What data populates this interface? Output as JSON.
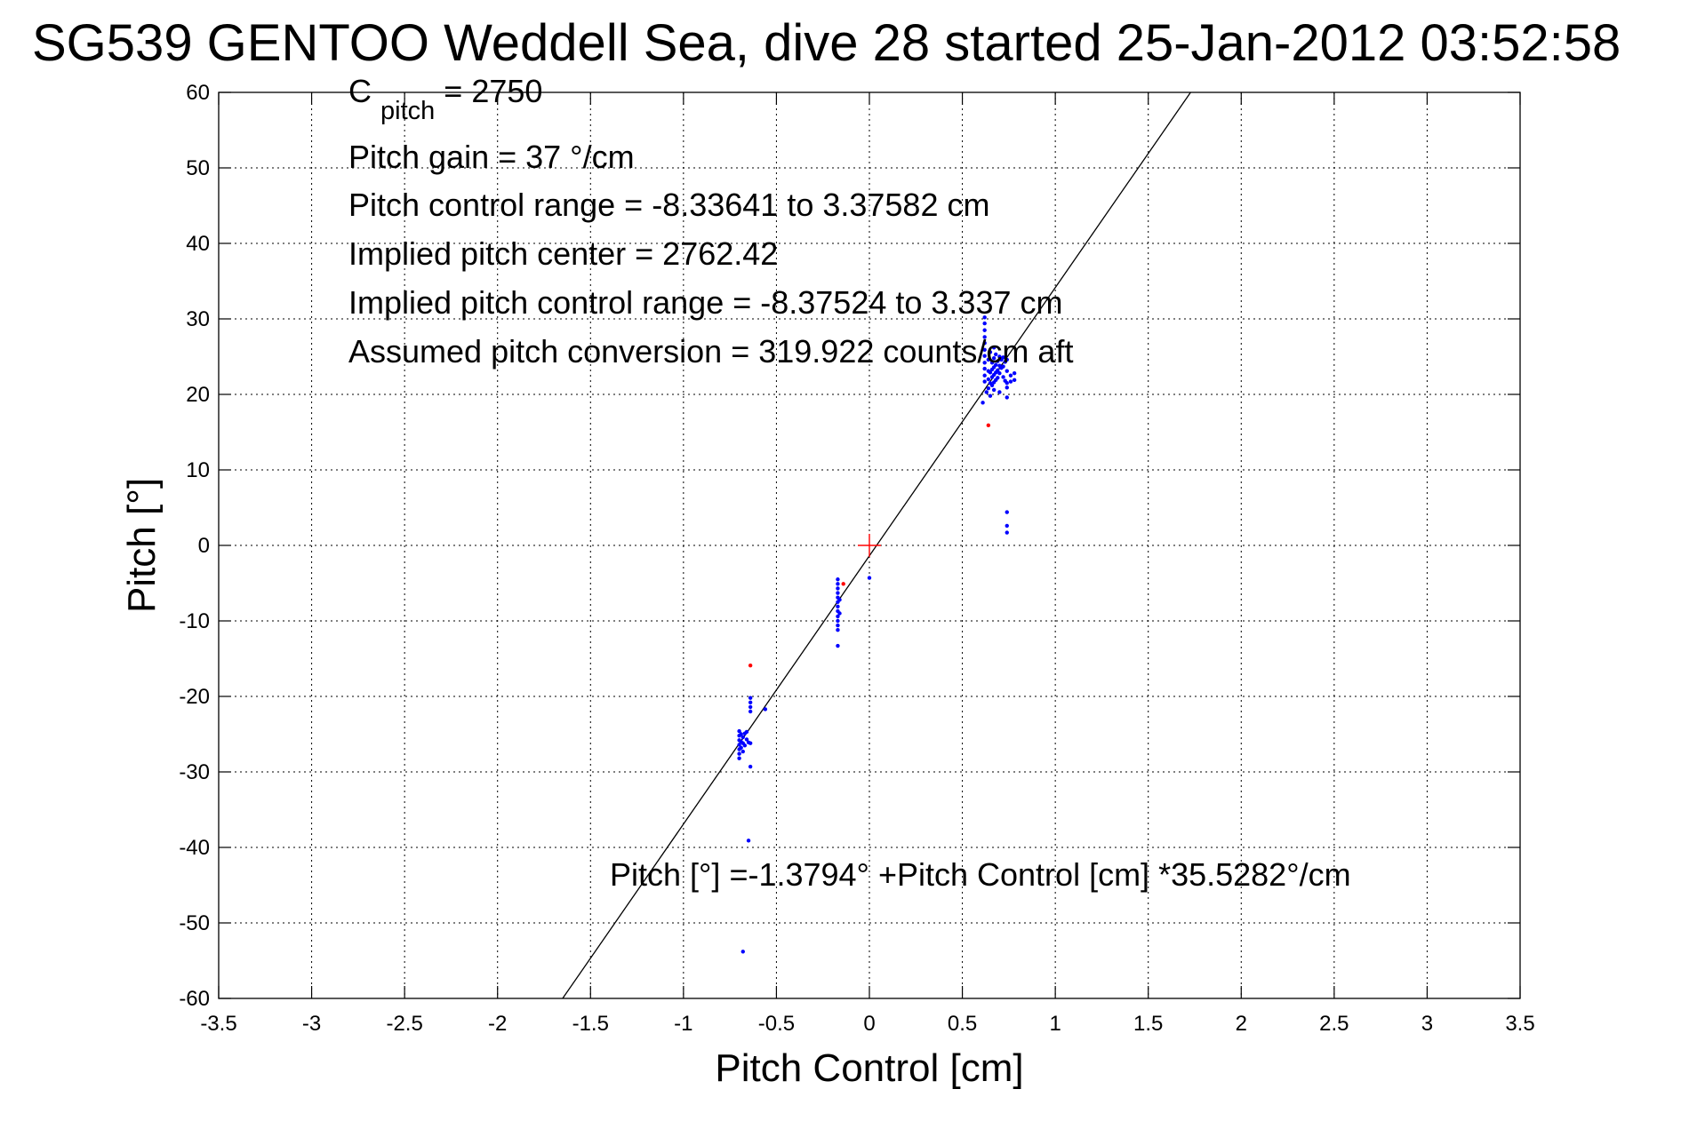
{
  "chart_data": {
    "type": "scatter",
    "title": "SG539 GENTOO Weddell Sea, dive 28 started 25-Jan-2012 03:52:58",
    "xlabel": "Pitch Control [cm]",
    "ylabel": "Pitch [°]",
    "xlim": [
      -3.5,
      3.5
    ],
    "ylim": [
      -60,
      60
    ],
    "xticks": [
      -3.5,
      -3,
      -2.5,
      -2,
      -1.5,
      -1,
      -0.5,
      0,
      0.5,
      1,
      1.5,
      2,
      2.5,
      3,
      3.5
    ],
    "xtick_labels": [
      "-3.5",
      "-3",
      "-2.5",
      "-2",
      "-1.5",
      "-1",
      "-0.5",
      "0",
      "0.5",
      "1",
      "1.5",
      "2",
      "2.5",
      "3",
      "3.5"
    ],
    "yticks": [
      -60,
      -50,
      -40,
      -30,
      -20,
      -10,
      0,
      10,
      20,
      30,
      40,
      50,
      60
    ],
    "ytick_labels": [
      "-60",
      "-50",
      "-40",
      "-30",
      "-20",
      "-10",
      "0",
      "10",
      "20",
      "30",
      "40",
      "50",
      "60"
    ],
    "grid": true,
    "annotations": {
      "c_pitch_main": "C",
      "c_pitch_sub": "pitch",
      "c_pitch_value": " = 2750",
      "lines": [
        "Pitch gain = 37 °/cm",
        "Pitch control range = -8.33641 to 3.37582 cm",
        "Implied pitch center = 2762.42",
        "Implied pitch control range = -8.37524 to 3.337 cm",
        "Assumed pitch conversion = 319.922 counts/cm aft"
      ],
      "fit_equation": "Pitch [°] =-1.3794° +Pitch Control [cm] *35.5282°/cm"
    },
    "fit_line": {
      "intercept": -1.3794,
      "slope": 35.5282,
      "color": "#000000"
    },
    "center_marker": {
      "x": 0,
      "y": 0,
      "color": "#ff0000"
    },
    "series": [
      {
        "color": "#0000ff",
        "points": [
          [
            -0.7,
            -24.6
          ],
          [
            -0.7,
            -25.2
          ],
          [
            -0.7,
            -25.8
          ],
          [
            -0.7,
            -26.4
          ],
          [
            -0.7,
            -27.0
          ],
          [
            -0.7,
            -27.6
          ],
          [
            -0.7,
            -28.2
          ],
          [
            -0.69,
            -25.0
          ],
          [
            -0.69,
            -26.0
          ],
          [
            -0.69,
            -26.8
          ],
          [
            -0.68,
            -25.4
          ],
          [
            -0.68,
            -26.2
          ],
          [
            -0.68,
            -27.3
          ],
          [
            -0.67,
            -24.9
          ],
          [
            -0.67,
            -26.5
          ],
          [
            -0.66,
            -25.7
          ],
          [
            -0.66,
            -24.7
          ],
          [
            -0.65,
            -26.1
          ],
          [
            -0.64,
            -20.2
          ],
          [
            -0.64,
            -20.8
          ],
          [
            -0.64,
            -21.4
          ],
          [
            -0.64,
            -22.0
          ],
          [
            -0.64,
            -29.3
          ],
          [
            -0.64,
            -26.2
          ],
          [
            -0.56,
            -21.7
          ],
          [
            -0.65,
            -39.1
          ],
          [
            -0.68,
            -53.8
          ],
          [
            -0.17,
            -4.5
          ],
          [
            -0.17,
            -5.1
          ],
          [
            -0.17,
            -5.7
          ],
          [
            -0.17,
            -6.3
          ],
          [
            -0.17,
            -6.9
          ],
          [
            -0.17,
            -7.5
          ],
          [
            -0.17,
            -8.1
          ],
          [
            -0.17,
            -8.7
          ],
          [
            -0.17,
            -9.4
          ],
          [
            -0.17,
            -10.0
          ],
          [
            -0.17,
            -10.6
          ],
          [
            -0.17,
            -11.2
          ],
          [
            -0.17,
            -13.3
          ],
          [
            -0.16,
            -7.2
          ],
          [
            -0.16,
            -9.0
          ],
          [
            0.0,
            -4.3
          ],
          [
            0.62,
            30.2
          ],
          [
            0.62,
            29.4
          ],
          [
            0.62,
            28.5
          ],
          [
            0.62,
            27.6
          ],
          [
            0.62,
            26.8
          ],
          [
            0.62,
            25.9
          ],
          [
            0.62,
            25.1
          ],
          [
            0.62,
            24.2
          ],
          [
            0.62,
            23.4
          ],
          [
            0.62,
            22.5
          ],
          [
            0.62,
            21.7
          ],
          [
            0.61,
            18.9
          ],
          [
            0.63,
            20.3
          ],
          [
            0.64,
            24.6
          ],
          [
            0.64,
            23.1
          ],
          [
            0.64,
            22.0
          ],
          [
            0.64,
            20.8
          ],
          [
            0.65,
            25.6
          ],
          [
            0.65,
            22.9
          ],
          [
            0.65,
            21.5
          ],
          [
            0.65,
            19.8
          ],
          [
            0.66,
            24.2
          ],
          [
            0.66,
            23.3
          ],
          [
            0.66,
            22.3
          ],
          [
            0.66,
            21.2
          ],
          [
            0.67,
            26.2
          ],
          [
            0.67,
            24.8
          ],
          [
            0.67,
            23.6
          ],
          [
            0.67,
            22.6
          ],
          [
            0.67,
            21.6
          ],
          [
            0.67,
            20.6
          ],
          [
            0.68,
            25.3
          ],
          [
            0.68,
            23.9
          ],
          [
            0.68,
            22.9
          ],
          [
            0.68,
            21.9
          ],
          [
            0.69,
            24.4
          ],
          [
            0.69,
            23.2
          ],
          [
            0.69,
            22.2
          ],
          [
            0.7,
            25.0
          ],
          [
            0.7,
            23.8
          ],
          [
            0.7,
            22.8
          ],
          [
            0.7,
            20.3
          ],
          [
            0.71,
            24.6
          ],
          [
            0.71,
            23.5
          ],
          [
            0.72,
            24.9
          ],
          [
            0.72,
            23.7
          ],
          [
            0.72,
            22.3
          ],
          [
            0.73,
            24.3
          ],
          [
            0.73,
            21.8
          ],
          [
            0.74,
            24.6
          ],
          [
            0.74,
            23.1
          ],
          [
            0.74,
            21.5
          ],
          [
            0.74,
            20.9
          ],
          [
            0.74,
            19.6
          ],
          [
            0.76,
            22.5
          ],
          [
            0.76,
            21.7
          ],
          [
            0.78,
            22.8
          ],
          [
            0.78,
            21.9
          ],
          [
            0.74,
            4.4
          ],
          [
            0.74,
            2.6
          ],
          [
            0.74,
            1.7
          ]
        ]
      },
      {
        "color": "#ff0000",
        "points": [
          [
            -0.64,
            -15.9
          ],
          [
            -0.14,
            -5.1
          ],
          [
            0.64,
            15.9
          ]
        ]
      }
    ]
  }
}
